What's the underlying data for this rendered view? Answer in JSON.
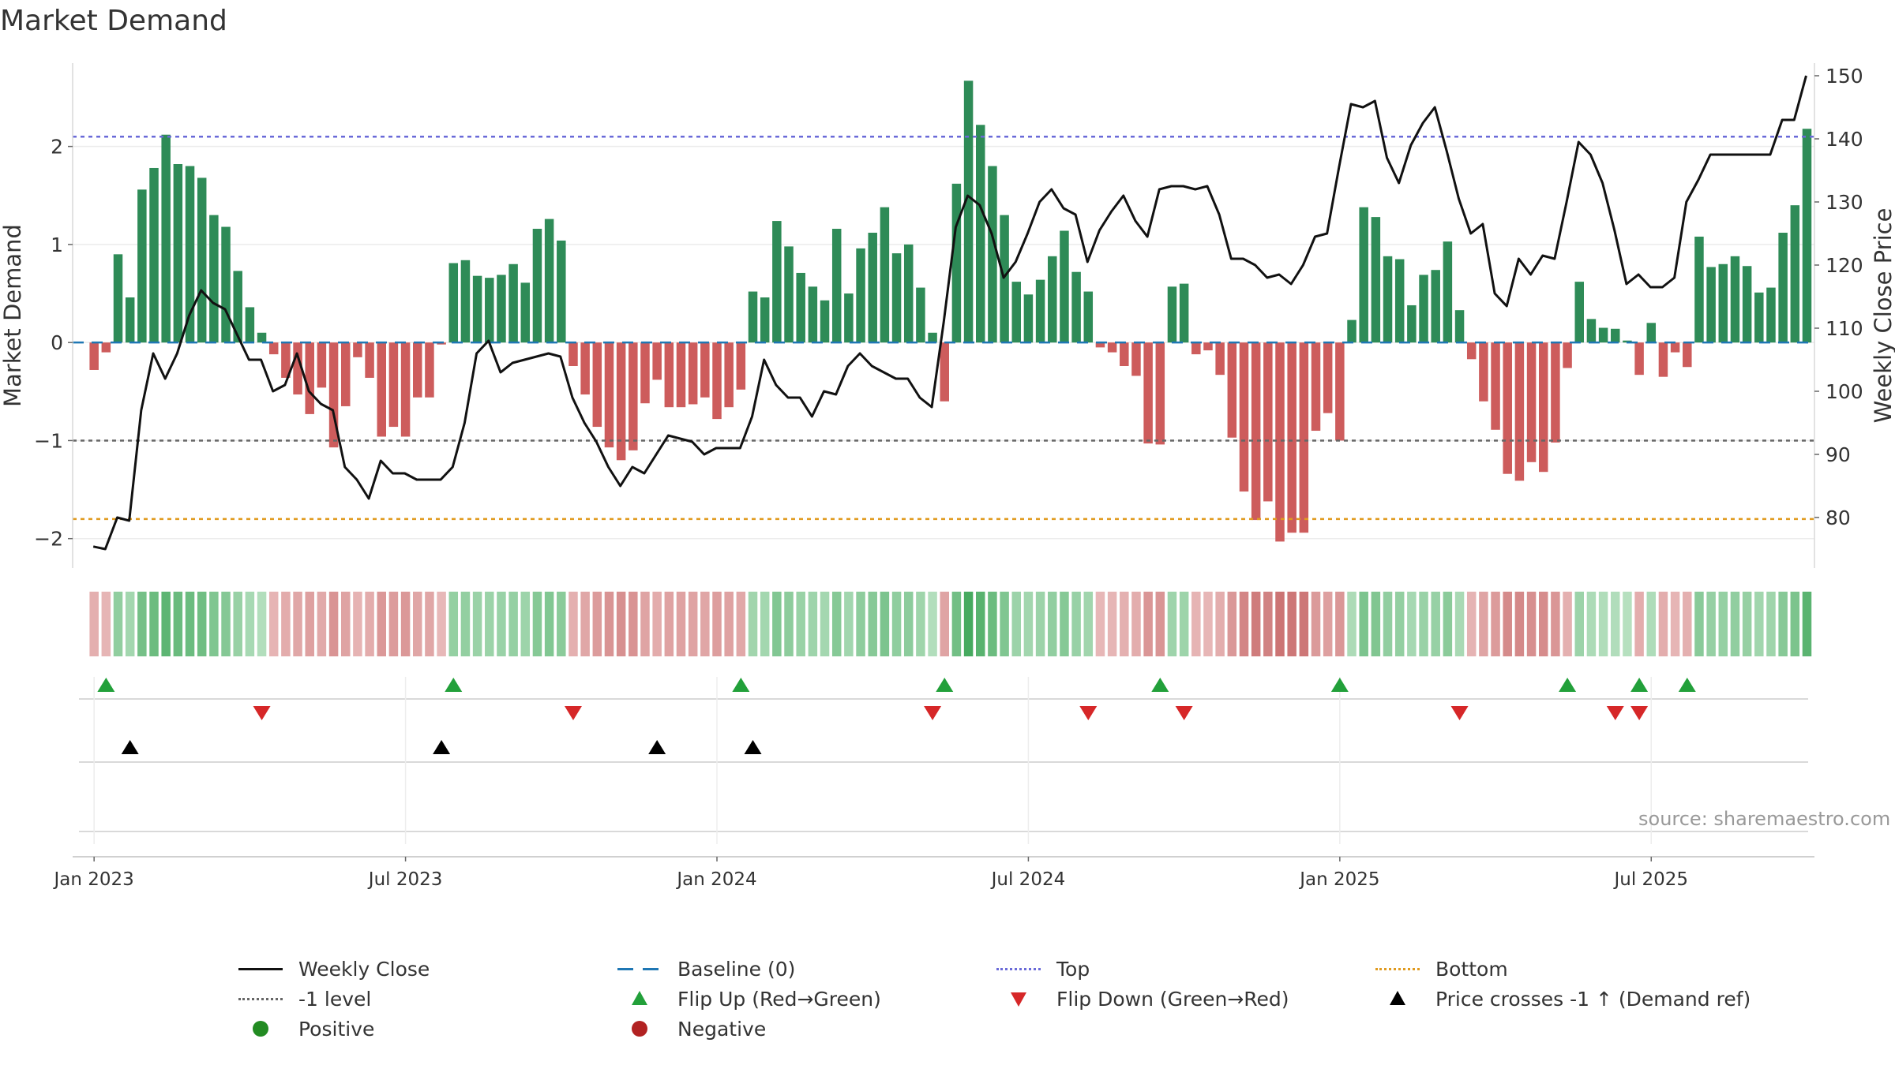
{
  "title": "Market Demand",
  "source": "source: sharemaestro.com",
  "colors": {
    "positive": "#2e8b57",
    "negative": "#cd5c5c",
    "line": "#111111",
    "top": "#6a6ad8",
    "bottom": "#e09a1f",
    "minus1": "#666666",
    "baseline": "#1f77b4",
    "flip_up": "#22a03a",
    "flip_down": "#d62728",
    "cross": "#000000",
    "pos_dot": "#228b22",
    "neg_dot": "#b22222"
  },
  "legend": [
    {
      "label": "Weekly Close",
      "key": "line"
    },
    {
      "label": "Baseline (0)",
      "key": "baseline"
    },
    {
      "label": "Top",
      "key": "top"
    },
    {
      "label": "Bottom",
      "key": "bottom"
    },
    {
      "label": "-1 level",
      "key": "minus1"
    },
    {
      "label": "Flip Up (Red→Green)",
      "key": "flip_up"
    },
    {
      "label": "Flip Down (Green→Red)",
      "key": "flip_down"
    },
    {
      "label": "Price crosses -1 ↑ (Demand ref)",
      "key": "cross"
    },
    {
      "label": "Positive",
      "key": "pos_dot"
    },
    {
      "label": "Negative",
      "key": "neg_dot"
    }
  ],
  "chart_data": {
    "type": "bar",
    "title": "Market Demand",
    "ylabel": "Market Demand",
    "ylabel_right": "Weekly Close Price",
    "ylim": [
      -2.3,
      2.85
    ],
    "ylim_right": [
      72,
      152
    ],
    "yticks": [
      -2,
      -1,
      0,
      1,
      2
    ],
    "yticks_right": [
      80,
      90,
      100,
      110,
      120,
      130,
      140,
      150
    ],
    "xticks": [
      "Jan 2023",
      "Jul 2023",
      "Jan 2024",
      "Jul 2024",
      "Jan 2025",
      "Jul 2025"
    ],
    "xtick_weeks": [
      0,
      26,
      52,
      78,
      104,
      130
    ],
    "week_offset": 1,
    "top_level": 2.1,
    "bottom_level": -1.8,
    "minus1_level": -1.0,
    "demand": [
      -0.28,
      -0.1,
      0.9,
      0.46,
      1.56,
      1.78,
      2.12,
      1.82,
      1.8,
      1.68,
      1.3,
      1.18,
      0.73,
      0.36,
      0.1,
      -0.12,
      -0.36,
      -0.53,
      -0.73,
      -0.46,
      -1.07,
      -0.65,
      -0.15,
      -0.36,
      -0.96,
      -0.86,
      -0.96,
      -0.56,
      -0.56,
      -0.02,
      0.81,
      0.84,
      0.68,
      0.66,
      0.69,
      0.8,
      0.61,
      1.16,
      1.26,
      1.04,
      -0.24,
      -0.53,
      -0.86,
      -1.07,
      -1.2,
      -1.1,
      -0.62,
      -0.38,
      -0.66,
      -0.66,
      -0.63,
      -0.56,
      -0.78,
      -0.66,
      -0.48,
      0.52,
      0.46,
      1.24,
      0.98,
      0.71,
      0.57,
      0.43,
      1.16,
      0.5,
      0.96,
      1.12,
      1.38,
      0.91,
      1.0,
      0.56,
      0.1,
      -0.6,
      1.62,
      2.67,
      2.22,
      1.8,
      1.3,
      0.62,
      0.49,
      0.64,
      0.88,
      1.14,
      0.72,
      0.52,
      -0.05,
      -0.1,
      -0.24,
      -0.34,
      -1.03,
      -1.04,
      0.57,
      0.6,
      -0.12,
      -0.08,
      -0.33,
      -0.97,
      -1.52,
      -1.81,
      -1.62,
      -2.03,
      -1.94,
      -1.94,
      -0.9,
      -0.72,
      -1.0,
      0.23,
      1.38,
      1.28,
      0.88,
      0.85,
      0.38,
      0.69,
      0.74,
      1.03,
      0.33,
      -0.17,
      -0.6,
      -0.89,
      -1.34,
      -1.41,
      -1.22,
      -1.32,
      -1.02,
      -0.26,
      0.62,
      0.24,
      0.15,
      0.14,
      0.02,
      -0.33,
      0.2,
      -0.35,
      -0.1,
      -0.25,
      1.08,
      0.77,
      0.8,
      0.88,
      0.78,
      0.51,
      0.56,
      1.12,
      1.4,
      2.18
    ],
    "price": [
      75.4,
      75,
      80,
      79.5,
      97,
      106,
      102,
      106,
      112,
      116,
      114,
      113,
      109,
      105,
      105,
      100,
      101,
      106,
      100,
      98,
      97,
      88,
      86,
      83,
      89,
      87,
      87,
      86,
      86,
      86,
      88,
      95,
      106,
      108,
      103,
      104.5,
      105,
      105.5,
      106,
      105.5,
      99,
      95,
      92,
      88,
      85,
      88,
      87,
      90,
      93,
      92.5,
      92,
      90,
      91,
      91,
      91,
      96,
      105,
      101,
      99,
      99,
      96,
      100,
      99.5,
      104,
      106,
      104,
      103,
      102,
      102,
      99,
      97.5,
      111,
      126,
      131,
      129.5,
      125,
      118,
      120.5,
      125,
      130,
      132,
      129,
      128,
      120.5,
      125.5,
      128.5,
      131,
      127,
      124.5,
      132,
      132.5,
      132.5,
      132,
      132.5,
      128,
      121,
      121,
      120,
      118,
      118.5,
      117,
      120,
      124.5,
      125,
      135.5,
      145.5,
      145,
      146,
      137,
      133,
      139,
      142.5,
      145,
      138,
      130.5,
      125,
      126.5,
      115.5,
      113.5,
      121,
      118.5,
      121.5,
      121,
      130,
      139.5,
      137.5,
      133,
      125.5,
      117,
      118.5,
      116.5,
      116.5,
      118,
      130,
      133.5,
      137.5,
      137.5,
      137.5,
      137.5,
      137.5,
      137.5,
      143,
      143,
      150
    ],
    "flip_up_weeks": [
      1,
      30,
      54,
      71,
      89,
      104,
      123,
      129,
      133
    ],
    "flip_down_weeks": [
      14,
      40,
      70,
      83,
      91,
      114,
      127,
      129
    ],
    "cross_up_weeks": [
      3,
      29,
      47,
      55
    ]
  }
}
